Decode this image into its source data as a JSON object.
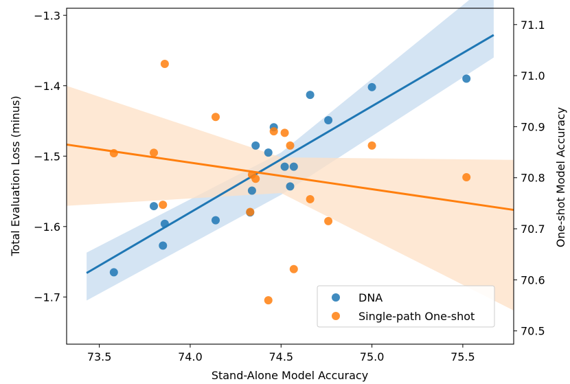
{
  "chart_data": {
    "type": "scatter",
    "xlabel": "Stand-Alone Model Accuracy",
    "ylabel_left": "Total Evaluation Loss (minus)",
    "ylabel_right": "One-shot Model Accuracy",
    "xlim": [
      73.32,
      75.78
    ],
    "ylim_left": [
      -1.767,
      -1.29
    ],
    "ylim_right": [
      70.474,
      71.132
    ],
    "x_ticks": [
      73.5,
      74.0,
      74.5,
      75.0,
      75.5
    ],
    "x_tick_labels": [
      "73.5",
      "74.0",
      "74.5",
      "75.0",
      "75.5"
    ],
    "y_left_ticks": [
      -1.3,
      -1.4,
      -1.5,
      -1.6,
      -1.7
    ],
    "y_left_tick_labels": [
      "−1.3",
      "−1.4",
      "−1.5",
      "−1.6",
      "−1.7"
    ],
    "y_right_ticks": [
      70.5,
      70.6,
      70.7,
      70.8,
      70.9,
      71.0,
      71.1
    ],
    "y_right_tick_labels": [
      "70.5",
      "70.6",
      "70.7",
      "70.8",
      "70.9",
      "71.0",
      "71.1"
    ],
    "legend_position": "lower-right",
    "series": [
      {
        "name": "DNA",
        "axis": "left",
        "color": "#1f77b4",
        "band_color": "#c6dbef",
        "x": [
          73.58,
          73.8,
          73.85,
          73.86,
          74.14,
          74.33,
          74.34,
          74.36,
          74.43,
          74.46,
          74.52,
          74.55,
          74.57,
          74.66,
          74.76,
          75.0,
          75.52
        ],
        "y": [
          -1.665,
          -1.571,
          -1.627,
          -1.596,
          -1.591,
          -1.58,
          -1.549,
          -1.485,
          -1.495,
          -1.459,
          -1.515,
          -1.543,
          -1.515,
          -1.413,
          -1.449,
          -1.402,
          -1.39
        ],
        "fit": {
          "x": [
            73.43,
            75.67
          ],
          "y": [
            -1.666,
            -1.328
          ]
        },
        "band": {
          "x": [
            73.43,
            74.5,
            75.67
          ],
          "upper": [
            -1.637,
            -1.495,
            -1.25
          ],
          "lower": [
            -1.705,
            -1.555,
            -1.36
          ]
        }
      },
      {
        "name": "Single-path One-shot",
        "axis": "right",
        "color": "#ff7f0e",
        "band_color": "#fde0c5",
        "x": [
          73.58,
          73.8,
          73.85,
          73.86,
          74.14,
          74.33,
          74.34,
          74.36,
          74.43,
          74.46,
          74.52,
          74.55,
          74.57,
          74.66,
          74.76,
          75.0,
          75.52
        ],
        "y": [
          70.848,
          70.849,
          70.747,
          71.023,
          70.919,
          70.733,
          70.806,
          70.798,
          70.56,
          70.891,
          70.888,
          70.863,
          70.621,
          70.758,
          70.715,
          70.863,
          70.801
        ],
        "fit": {
          "x": [
            73.32,
            75.78
          ],
          "y": [
            70.865,
            70.737
          ]
        },
        "band": {
          "x": [
            73.32,
            74.5,
            75.78
          ],
          "upper": [
            70.98,
            70.84,
            70.835
          ],
          "lower": [
            70.745,
            70.77,
            70.54
          ]
        }
      }
    ]
  }
}
